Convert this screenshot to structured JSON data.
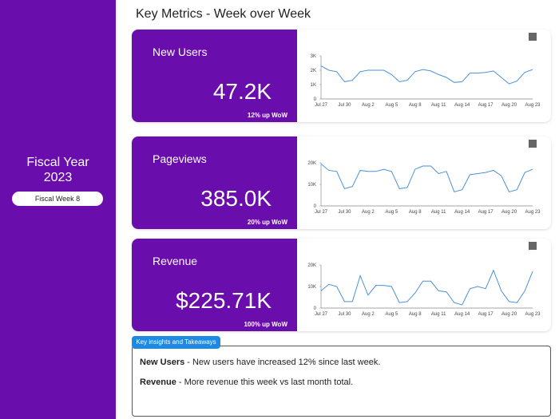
{
  "header": {
    "title": "Key Metrics - Week over Week"
  },
  "sidebar": {
    "title": "Fiscal Year 2023",
    "filter": "Fiscal Week 8"
  },
  "cards": [
    {
      "label": "New Users",
      "value": "47.2K",
      "change": "12% up WoW"
    },
    {
      "label": "Pageviews",
      "value": "385.0K",
      "change": "20% up WoW"
    },
    {
      "label": "Revenue",
      "value": "$225.71K",
      "change": "100% up WoW"
    }
  ],
  "chart_data": [
    {
      "type": "line",
      "color": "#4a90d9",
      "categories": [
        "Jul 27",
        null,
        null,
        "Jul 30",
        null,
        null,
        "Aug 2",
        null,
        null,
        "Aug 5",
        null,
        null,
        "Aug 8",
        null,
        null,
        "Aug 11",
        null,
        null,
        "Aug 14",
        null,
        null,
        "Aug 17",
        null,
        null,
        "Aug 20",
        null,
        null,
        "Aug 23"
      ],
      "values": [
        2300,
        2000,
        1900,
        1200,
        1300,
        1900,
        2000,
        2000,
        2000,
        1700,
        1200,
        1300,
        1900,
        2050,
        1950,
        1700,
        1500,
        1150,
        1200,
        1800,
        1800,
        1850,
        1950,
        1500,
        1050,
        1250,
        1850,
        2050
      ],
      "ylim": [
        0,
        3000
      ],
      "yticks": [
        0,
        {
          "value": 1000,
          "label": "1K"
        },
        {
          "value": 2000,
          "label": "2K"
        },
        {
          "value": 3000,
          "label": "3K"
        }
      ]
    },
    {
      "type": "line",
      "color": "#4a90d9",
      "categories": [
        "Jul 27",
        null,
        null,
        "Jul 30",
        null,
        null,
        "Aug 2",
        null,
        null,
        "Aug 5",
        null,
        null,
        "Aug 8",
        null,
        null,
        "Aug 11",
        null,
        null,
        "Aug 14",
        null,
        null,
        "Aug 17",
        null,
        null,
        "Aug 20",
        null,
        null,
        "Aug 23"
      ],
      "values": [
        19500,
        16500,
        16000,
        8000,
        9000,
        16500,
        16000,
        16000,
        17000,
        16000,
        8000,
        8500,
        17000,
        18500,
        18500,
        15000,
        16000,
        6500,
        7500,
        14500,
        15000,
        15500,
        16500,
        14000,
        6500,
        7500,
        15500,
        17000
      ],
      "ylim": [
        0,
        20000
      ],
      "yticks": [
        0,
        {
          "value": 10000,
          "label": "10K"
        },
        {
          "value": 20000,
          "label": "20K"
        }
      ]
    },
    {
      "type": "line",
      "color": "#4a90d9",
      "categories": [
        "Jul 27",
        null,
        null,
        "Jul 30",
        null,
        null,
        "Aug 2",
        null,
        null,
        "Aug 5",
        null,
        null,
        "Aug 8",
        null,
        null,
        "Aug 11",
        null,
        null,
        "Aug 14",
        null,
        null,
        "Aug 17",
        null,
        null,
        "Aug 20",
        null,
        null,
        "Aug 23"
      ],
      "values": [
        8000,
        11000,
        10000,
        3000,
        3000,
        15000,
        6000,
        10500,
        10500,
        10000,
        2500,
        3000,
        7000,
        12500,
        12500,
        8000,
        7500,
        2500,
        1500,
        9000,
        10000,
        9000,
        17500,
        8000,
        3000,
        2500,
        8000,
        17000
      ],
      "ylim": [
        0,
        20000
      ],
      "yticks": [
        0,
        {
          "value": 10000,
          "label": "10K"
        },
        {
          "value": 20000,
          "label": "20K"
        }
      ]
    }
  ],
  "insights": {
    "title": "Key insights and Takeaways",
    "items": [
      {
        "label": "New Users",
        "text": "- New users have increased 12% since last week."
      },
      {
        "label": "Revenue",
        "text": "- More revenue this week vs last month total."
      }
    ]
  }
}
